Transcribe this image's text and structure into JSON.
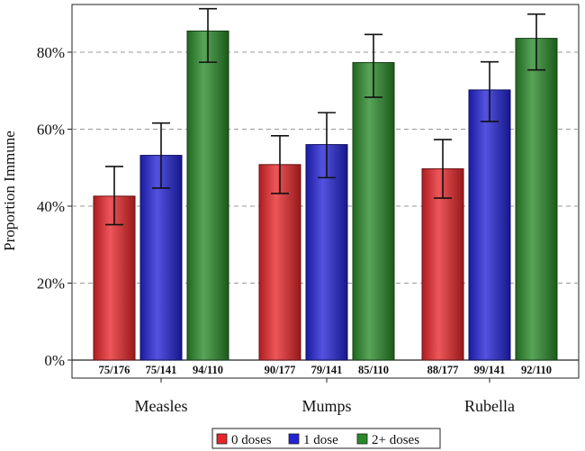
{
  "chart_data": {
    "type": "bar",
    "title": "",
    "xlabel": "",
    "ylabel": "Proportion Immune",
    "ylim": [
      0,
      0.95
    ],
    "yticks": [
      0,
      0.2,
      0.4,
      0.6,
      0.8
    ],
    "ytick_labels": [
      "0%",
      "20%",
      "40%",
      "60%",
      "80%"
    ],
    "grid": "horizontal dashed",
    "legend_position": "bottom",
    "categories": [
      "Measles",
      "Mumps",
      "Rubella"
    ],
    "series": [
      {
        "name": "0 doses",
        "color": "#e8262a",
        "values": [
          0.426,
          0.508,
          0.497
        ],
        "ci_low": [
          0.352,
          0.433,
          0.421
        ],
        "ci_high": [
          0.503,
          0.583,
          0.573
        ],
        "counts": [
          "75/176",
          "90/177",
          "88/177"
        ]
      },
      {
        "name": "1 dose",
        "color": "#2323d6",
        "values": [
          0.532,
          0.56,
          0.702
        ],
        "ci_low": [
          0.447,
          0.474,
          0.62
        ],
        "ci_high": [
          0.616,
          0.643,
          0.775
        ],
        "counts": [
          "75/141",
          "79/141",
          "99/141"
        ]
      },
      {
        "name": "2+ doses",
        "color": "#2a8a2a",
        "values": [
          0.855,
          0.773,
          0.836
        ],
        "ci_low": [
          0.774,
          0.683,
          0.754
        ],
        "ci_high": [
          0.913,
          0.846,
          0.899
        ],
        "counts": [
          "94/110",
          "85/110",
          "92/110"
        ]
      }
    ]
  }
}
